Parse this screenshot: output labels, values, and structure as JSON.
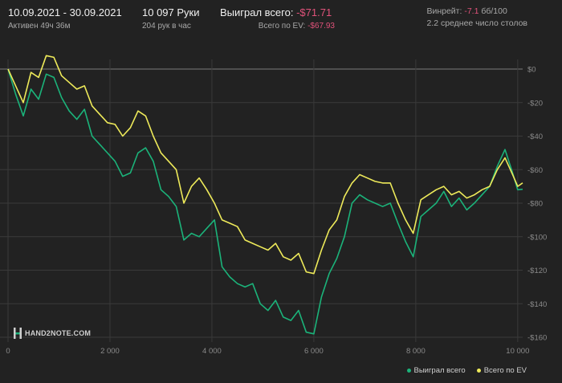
{
  "header": {
    "date_range": "10.09.2021 - 30.09.2021",
    "active_time": "Активен 49ч 36м",
    "hands": "10 097 Руки",
    "hands_per_hour": "204 рук в час",
    "won_label": "Выиграл всего:",
    "won_value": "-$71.71",
    "ev_label": "Всего по EV:",
    "ev_value": "-$67.93",
    "winrate_label": "Винрейт:",
    "winrate_value": "-7.1",
    "winrate_unit": "бб/100",
    "avg_tables": "2.2 среднее число столов"
  },
  "logo": {
    "text": "HAND2NOTE.COM",
    "icon": "hand2note-logo-icon"
  },
  "colors": {
    "background": "#222222",
    "won_line": "#1bb37a",
    "ev_line": "#eeea5a",
    "negative": "#e0527a",
    "grid": "#3a3a3a",
    "zero_line": "#7a7a7a"
  },
  "chart_data": {
    "type": "line",
    "title": "",
    "xlabel": "",
    "ylabel": "",
    "xlim": [
      0,
      10097
    ],
    "ylim": [
      -160,
      0
    ],
    "x_ticks": [
      0,
      2000,
      4000,
      6000,
      8000,
      10000
    ],
    "x_tick_labels": [
      "0",
      "2 000",
      "4 000",
      "6 000",
      "8 000",
      "10 000"
    ],
    "y_ticks": [
      0,
      -20,
      -40,
      -60,
      -80,
      -100,
      -120,
      -140,
      -160
    ],
    "y_tick_labels": [
      "$0",
      "-$20",
      "-$40",
      "-$60",
      "-$80",
      "-$100",
      "-$120",
      "-$140",
      "-$160"
    ],
    "grid": true,
    "legend_position": "bottom-right",
    "series": [
      {
        "name": "Выиграл всего",
        "color": "#1bb37a",
        "x": [
          0,
          150,
          300,
          450,
          600,
          750,
          900,
          1050,
          1200,
          1350,
          1500,
          1650,
          1800,
          1950,
          2100,
          2250,
          2400,
          2550,
          2700,
          2850,
          3000,
          3150,
          3300,
          3450,
          3600,
          3750,
          3900,
          4050,
          4200,
          4350,
          4500,
          4650,
          4800,
          4950,
          5100,
          5250,
          5400,
          5550,
          5700,
          5850,
          6000,
          6150,
          6300,
          6450,
          6600,
          6750,
          6900,
          7050,
          7200,
          7350,
          7500,
          7650,
          7800,
          7950,
          8100,
          8250,
          8400,
          8550,
          8700,
          8850,
          9000,
          9150,
          9300,
          9450,
          9600,
          9750,
          9900,
          10000,
          10097
        ],
        "values": [
          0,
          -15,
          -28,
          -12,
          -18,
          -3,
          -5,
          -17,
          -25,
          -30,
          -24,
          -40,
          -45,
          -50,
          -55,
          -64,
          -62,
          -50,
          -47,
          -55,
          -72,
          -76,
          -82,
          -102,
          -98,
          -100,
          -95,
          -90,
          -118,
          -124,
          -128,
          -130,
          -128,
          -140,
          -144,
          -138,
          -148,
          -150,
          -144,
          -157,
          -158,
          -136,
          -122,
          -113,
          -100,
          -80,
          -75,
          -78,
          -80,
          -82,
          -80,
          -92,
          -103,
          -112,
          -88,
          -84,
          -80,
          -73,
          -82,
          -77,
          -84,
          -80,
          -75,
          -70,
          -58,
          -48,
          -62,
          -72,
          -71.71
        ]
      },
      {
        "name": "Всего по EV",
        "color": "#eeea5a",
        "x": [
          0,
          150,
          300,
          450,
          600,
          750,
          900,
          1050,
          1200,
          1350,
          1500,
          1650,
          1800,
          1950,
          2100,
          2250,
          2400,
          2550,
          2700,
          2850,
          3000,
          3150,
          3300,
          3450,
          3600,
          3750,
          3900,
          4050,
          4200,
          4350,
          4500,
          4650,
          4800,
          4950,
          5100,
          5250,
          5400,
          5550,
          5700,
          5850,
          6000,
          6150,
          6300,
          6450,
          6600,
          6750,
          6900,
          7050,
          7200,
          7350,
          7500,
          7650,
          7800,
          7950,
          8100,
          8250,
          8400,
          8550,
          8700,
          8850,
          9000,
          9150,
          9300,
          9450,
          9600,
          9750,
          9900,
          10000,
          10097
        ],
        "values": [
          0,
          -10,
          -20,
          -2,
          -5,
          8,
          7,
          -4,
          -8,
          -12,
          -10,
          -22,
          -27,
          -32,
          -33,
          -40,
          -35,
          -25,
          -28,
          -40,
          -50,
          -55,
          -60,
          -80,
          -70,
          -65,
          -72,
          -80,
          -90,
          -92,
          -94,
          -102,
          -104,
          -106,
          -108,
          -104,
          -112,
          -114,
          -110,
          -121,
          -122,
          -108,
          -96,
          -90,
          -76,
          -68,
          -63,
          -65,
          -67,
          -68,
          -68,
          -80,
          -90,
          -98,
          -78,
          -75,
          -72,
          -70,
          -75,
          -73,
          -77,
          -75,
          -72,
          -70,
          -60,
          -53,
          -63,
          -70,
          -67.93
        ]
      }
    ]
  }
}
